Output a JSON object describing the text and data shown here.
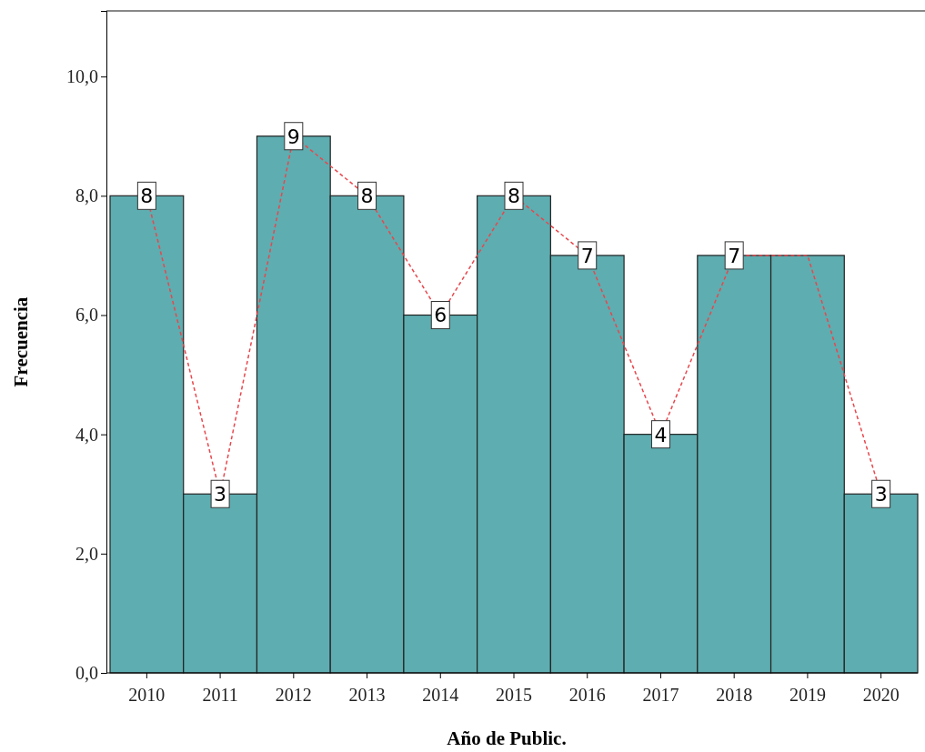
{
  "chart_data": {
    "type": "bar",
    "xlabel": "Año de Public.",
    "ylabel": "Frecuencia",
    "categories": [
      "2010",
      "2011",
      "2012",
      "2013",
      "2014",
      "2015",
      "2016",
      "2017",
      "2018",
      "2019",
      "2020"
    ],
    "series": [
      {
        "color": "#5eadb0",
        "values": [
          8,
          3,
          9,
          8,
          6,
          8,
          7,
          4,
          7,
          7,
          3
        ]
      },
      {
        "type": "line",
        "color": "#e8474d",
        "line_style": "dashed",
        "marker": "square",
        "values": [
          8,
          3,
          9,
          8,
          6,
          8,
          7,
          4,
          7,
          7,
          3
        ],
        "value_labels": [
          "8",
          "3",
          "9",
          "8",
          "6",
          "8",
          "7",
          "4",
          "7",
          null,
          "3"
        ]
      }
    ],
    "ylim": [
      0,
      11.1
    ],
    "yticks": [
      {
        "value": 0,
        "label": "0,0"
      },
      {
        "value": 2,
        "label": "2,0"
      },
      {
        "value": 4,
        "label": "4,0"
      },
      {
        "value": 6,
        "label": "6,0"
      },
      {
        "value": 8,
        "label": "8,0"
      },
      {
        "value": 10,
        "label": "10,0"
      }
    ],
    "grid": false
  }
}
